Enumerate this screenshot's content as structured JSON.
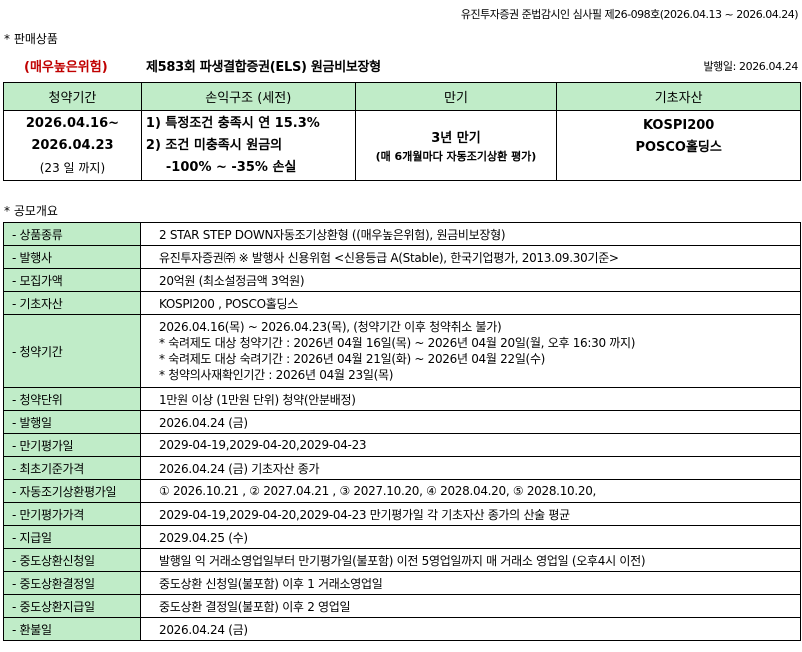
{
  "header_note": "유진투자증권 준법감시인 심사필 제26-098호(2026.04.13 ~ 2026.04.24)",
  "section1": "* 판매상품",
  "risk_label": "(매우높은위험)",
  "product_title": "제583회 파생결합증권(ELS) 원금비보장형",
  "issue_date": "발행일: 2026.04.24",
  "summary": {
    "headers": [
      "청약기간",
      "손익구조 (세전)",
      "만기",
      "기초자산"
    ],
    "period": [
      "2026.04.16~",
      "2026.04.23",
      "(23 일 까지)"
    ],
    "payoff": [
      "1) 특정조건 충족시 연 15.3%",
      "2) 조건 미충족시 원금의",
      "-100% ~ -35% 손실"
    ],
    "maturity": [
      "3년 만기",
      "(매 6개월마다 자동조기상환 평가)"
    ],
    "underlying": [
      "KOSPI200",
      "POSCO홀딩스"
    ]
  },
  "section2": "* 공모개요",
  "rows": [
    {
      "label": "- 상품종류",
      "value": [
        "2 STAR STEP DOWN자동조기상환형 ((매우높은위험), 원금비보장형)"
      ]
    },
    {
      "label": "- 발행사",
      "value": [
        "유진투자증권㈜  ※ 발행사 신용위험 <신용등급 A(Stable), 한국기업평가, 2013.09.30기준>"
      ]
    },
    {
      "label": "- 모집가액",
      "value": [
        "20억원 (최소설정금액 3억원)"
      ]
    },
    {
      "label": "- 기초자산",
      "value": [
        "KOSPI200 , POSCO홀딩스"
      ]
    },
    {
      "label": "- 청약기간",
      "value": [
        "2026.04.16(목) ~ 2026.04.23(목), (청약기간 이후 청약취소 불가)",
        "* 숙려제도 대상 청약기간 : 2026년 04월 16일(목) ~ 2026년 04월 20일(월, 오후 16:30 까지)",
        "* 숙려제도 대상 숙려기간 : 2026년 04월 21일(화) ~ 2026년 04월 22일(수)",
        "* 청약의사재확인기간 : 2026년 04월 23일(목)"
      ]
    },
    {
      "label": "- 청약단위",
      "value": [
        "1만원 이상 (1만원 단위) 청약(안분배정)"
      ]
    },
    {
      "label": "- 발행일",
      "value": [
        "2026.04.24 (금)"
      ]
    },
    {
      "label": "- 만기평가일",
      "value": [
        "2029-04-19,2029-04-20,2029-04-23"
      ]
    },
    {
      "label": "- 최초기준가격",
      "value": [
        "2026.04.24 (금) 기초자산 종가"
      ]
    },
    {
      "label": "- 자동조기상환평가일",
      "value": [
        "① 2026.10.21 , ② 2027.04.21 , ③ 2027.10.20, ④ 2028.04.20, ⑤ 2028.10.20,"
      ]
    },
    {
      "label": "- 만기평가가격",
      "value": [
        "2029-04-19,2029-04-20,2029-04-23 만기평가일 각 기초자산 종가의 산술 평균"
      ]
    },
    {
      "label": "- 지급일",
      "value": [
        "2029.04.25 (수)"
      ]
    },
    {
      "label": "- 중도상환신청일",
      "value": [
        "발행일 익 거래소영업일부터 만기평가일(불포함) 이전 5영업일까지 매 거래소 영업일 (오후4시 이전)"
      ]
    },
    {
      "label": "- 중도상환결정일",
      "value": [
        "중도상환 신청일(불포함) 이후 1 거래소영업일"
      ]
    },
    {
      "label": "- 중도상환지급일",
      "value": [
        "중도상환 결정일(불포함) 이후 2 영업일"
      ]
    },
    {
      "label": "- 환불일",
      "value": [
        "2026.04.24 (금)"
      ]
    }
  ],
  "colors": {
    "header_bg": "#c0ecc8",
    "risk": "#c00000"
  }
}
